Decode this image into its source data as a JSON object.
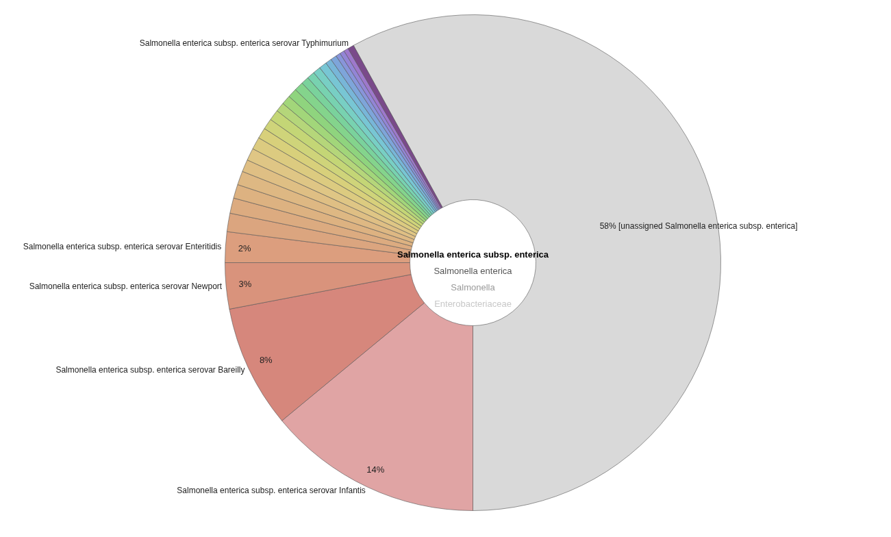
{
  "chart_data": {
    "type": "donut",
    "categories": [
      "[unassigned Salmonella enterica subsp. enterica]",
      "Salmonella enterica subsp. enterica serovar Infantis",
      "Salmonella enterica subsp. enterica serovar Bareilly",
      "Salmonella enterica subsp. enterica serovar Newport",
      "Salmonella enterica subsp. enterica serovar Enteritidis",
      null,
      null,
      null,
      null,
      null,
      null,
      null,
      null,
      null,
      null,
      null,
      null,
      null,
      null,
      null,
      null,
      null,
      null,
      null,
      null,
      null,
      null,
      null,
      "Salmonella enterica subsp. enterica serovar Typhimurium"
    ],
    "values": [
      58,
      14,
      8,
      3,
      2,
      1.2,
      1.0,
      0.9,
      0.9,
      0.8,
      0.8,
      0.8,
      0.7,
      0.7,
      0.7,
      0.6,
      0.6,
      0.6,
      0.6,
      0.5,
      0.5,
      0.5,
      0.5,
      0.4,
      0.4,
      0.3,
      0.3,
      0.3,
      0.4
    ],
    "colors": [
      "#d9d9d9",
      "#e0a4a4",
      "#d6877c",
      "#d9937c",
      "#dc9e7e",
      "#dba57f",
      "#dcab80",
      "#ddb281",
      "#deb883",
      "#dfbf84",
      "#dfc685",
      "#dccb80",
      "#d8d07b",
      "#cfd47a",
      "#c4d676",
      "#b5d67a",
      "#a2d67a",
      "#8fd47e",
      "#84d48c",
      "#7ad29c",
      "#78d2b0",
      "#78cfc4",
      "#78c6d4",
      "#78b6d8",
      "#7ea5da",
      "#8895da",
      "#9385d6",
      "#9e78cc",
      "#7a4a8a"
    ],
    "value_labels": [
      "58%",
      "14%",
      "8%",
      "3%",
      "2%",
      null,
      null,
      null,
      null,
      null,
      null,
      null,
      null,
      null,
      null,
      null,
      null,
      null,
      null,
      null,
      null,
      null,
      null,
      null,
      null,
      null,
      null,
      null,
      null
    ],
    "annotations": [
      "Salmonella enterica subsp. enterica",
      "Salmonella enterica",
      "Salmonella",
      "Enterobacteriaceae"
    ]
  }
}
